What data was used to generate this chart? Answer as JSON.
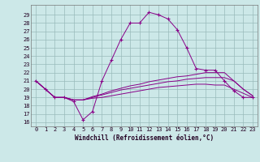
{
  "x": [
    0,
    1,
    2,
    3,
    4,
    5,
    6,
    7,
    8,
    9,
    10,
    11,
    12,
    13,
    14,
    15,
    16,
    17,
    18,
    19,
    20,
    21,
    22,
    23
  ],
  "main_line": [
    21,
    20,
    19,
    19,
    18.5,
    16.3,
    17.3,
    21,
    23.5,
    26,
    28,
    28,
    29.3,
    29,
    28.5,
    27.2,
    25,
    22.5,
    22.3,
    22.3,
    21,
    19.8,
    19,
    19
  ],
  "flat1": [
    21,
    20,
    19,
    19,
    18.7,
    18.7,
    18.9,
    19.0,
    19.2,
    19.4,
    19.6,
    19.8,
    20.0,
    20.2,
    20.3,
    20.4,
    20.5,
    20.6,
    20.6,
    20.5,
    20.5,
    20.0,
    19.5,
    19.0
  ],
  "flat2": [
    21,
    20,
    19,
    19,
    18.7,
    18.7,
    19.0,
    19.3,
    19.6,
    19.9,
    20.1,
    20.3,
    20.5,
    20.7,
    20.9,
    21.0,
    21.2,
    21.3,
    21.4,
    21.4,
    21.4,
    21.0,
    20.0,
    19.2
  ],
  "flat3": [
    21,
    20,
    19,
    19,
    18.7,
    18.7,
    19.1,
    19.4,
    19.8,
    20.1,
    20.4,
    20.6,
    20.9,
    21.1,
    21.3,
    21.5,
    21.6,
    21.8,
    22.0,
    22.0,
    22.0,
    21.0,
    20.0,
    19.2
  ],
  "bg_color": "#cce8e8",
  "line_color": "#880088",
  "grid_color": "#99bbbb",
  "xlabel": "Windchill (Refroidissement éolien,°C)",
  "ylim_min": 15.5,
  "ylim_max": 30.2,
  "xlim_min": -0.5,
  "xlim_max": 23.5,
  "yticks": [
    16,
    17,
    18,
    19,
    20,
    21,
    22,
    23,
    24,
    25,
    26,
    27,
    28,
    29
  ],
  "xticks": [
    0,
    1,
    2,
    3,
    4,
    5,
    6,
    7,
    8,
    9,
    10,
    11,
    12,
    13,
    14,
    15,
    16,
    17,
    18,
    19,
    20,
    21,
    22,
    23
  ],
  "tick_fontsize": 5.0,
  "xlabel_fontsize": 5.5
}
